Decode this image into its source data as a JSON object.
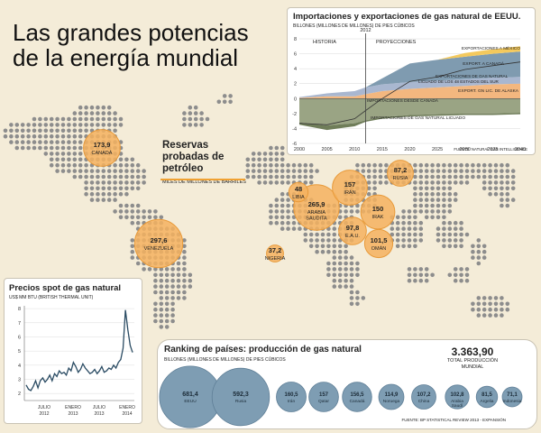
{
  "main_title": {
    "line1": "Las grandes potencias",
    "line2": "de la energía mundial"
  },
  "colors": {
    "background": "#f4ecd8",
    "map_dot": "#8d8d8d",
    "reserve_bubble": "#f4b25f",
    "reserve_border": "#e89a3a",
    "production_bubble": "#7e9db3",
    "production_border": "#5f7f97",
    "accent_line": "#f0a132"
  },
  "reserves": {
    "title": "Reservas probadas de petróleo",
    "unit": "MILES DE MILLONES DE BARRILES",
    "items": [
      {
        "value": "173,9",
        "name": "CANADÁ",
        "v": 173.9
      },
      {
        "value": "297,6",
        "name": "VENEZUELA",
        "v": 297.6
      },
      {
        "value": "37,2",
        "name": "NIGERIA",
        "v": 37.2
      },
      {
        "value": "48",
        "name": "LIBIA",
        "v": 48
      },
      {
        "value": "265,9",
        "name": "ARABIA SAUDITA",
        "v": 265.9
      },
      {
        "value": "157",
        "name": "IRÁN",
        "v": 157
      },
      {
        "value": "150",
        "name": "IRAK",
        "v": 150
      },
      {
        "value": "97,8",
        "name": "E.A.U.",
        "v": 97.8
      },
      {
        "value": "101,5",
        "name": "OMÁN",
        "v": 101.5
      },
      {
        "value": "87,2",
        "name": "RUSIA",
        "v": 87.2
      }
    ]
  },
  "chart_data": [
    {
      "type": "area",
      "title": "Importaciones y exportaciones de gas natural de EEUU.",
      "ylabel": "BILLONES (MILLONES DE MILLONES) DE PIES CÚBICOS",
      "source": "FUENTE: NATURAL GAS INTELLIGENCE",
      "x_ticks": [
        "2000",
        "2005",
        "2010",
        "2015",
        "2020",
        "2025",
        "2030",
        "2035",
        "2040"
      ],
      "y_ticks": [
        "8",
        "6",
        "4",
        "2",
        "0",
        "-2",
        "-4",
        "-6"
      ],
      "xlim": [
        2000,
        2040
      ],
      "ylim": [
        -6,
        8
      ],
      "divider_year": 2012,
      "divider_label": "2012",
      "period_labels": {
        "history": "HISTORIA",
        "projections": "PROYECCIONES"
      },
      "x": [
        2000,
        2005,
        2010,
        2012,
        2015,
        2020,
        2025,
        2030,
        2035,
        2040
      ],
      "series": [
        {
          "name": "EXPORTACIONES A MÉXICO",
          "color": "#f3b77f",
          "values": [
            0.1,
            0.3,
            0.3,
            0.6,
            1.0,
            1.3,
            1.5,
            1.7,
            1.9,
            2.0
          ]
        },
        {
          "name": "EXPORT. A CANADÁ",
          "color": "#a9b7d0",
          "values": [
            0.1,
            0.4,
            0.7,
            0.9,
            0.9,
            0.9,
            0.9,
            0.9,
            0.9,
            0.9
          ]
        },
        {
          "name": "EXPORTACIONES DE GAS NATURAL LICUADO DE LOS 48 ESTADOS DEL SUR",
          "color": "#7f9bb0",
          "values": [
            0,
            0,
            0,
            0,
            0.8,
            2.5,
            2.8,
            3.0,
            3.2,
            3.4
          ]
        },
        {
          "name": "EXPORT. GN LIC. DE ALASKA",
          "color": "#f4c95d",
          "values": [
            0,
            0,
            0,
            0,
            0,
            0,
            0,
            0.5,
            0.6,
            0.7
          ]
        },
        {
          "name": "IMPORTACIONES DESDE CANADÁ",
          "color": "#9aa484",
          "values": [
            -3.2,
            -3.6,
            -3.3,
            -2.9,
            -2.5,
            -2.2,
            -2.1,
            -2.0,
            -2.0,
            -1.9
          ]
        },
        {
          "name": "IMPORTACIONES DE GAS NATURAL LICUADO",
          "color": "#6f7d59",
          "values": [
            -0.3,
            -0.6,
            -0.4,
            -0.2,
            -0.2,
            -0.2,
            -0.2,
            -0.2,
            -0.2,
            -0.2
          ]
        }
      ]
    },
    {
      "type": "line",
      "title": "Precios spot de gas natural",
      "ylabel": "US$ MM BTU (BRITISH THERMAL UNIT)",
      "y_ticks": [
        "8",
        "7",
        "6",
        "5",
        "4",
        "3",
        "2"
      ],
      "ylim": [
        1.5,
        8.2
      ],
      "x_ticks": [
        {
          "label": "JULIO",
          "year": "2012"
        },
        {
          "label": "ENERO",
          "year": "2013"
        },
        {
          "label": "JULIO",
          "year": "2013"
        },
        {
          "label": "ENERO",
          "year": "2014"
        }
      ],
      "values": [
        2.6,
        2.3,
        2.2,
        2.5,
        2.9,
        2.4,
        2.9,
        3.1,
        2.8,
        3.0,
        3.3,
        2.9,
        3.4,
        3.2,
        3.6,
        3.4,
        3.5,
        3.3,
        3.8,
        3.6,
        4.2,
        3.9,
        3.5,
        3.7,
        4.1,
        3.8,
        3.6,
        3.4,
        3.5,
        3.7,
        3.4,
        3.6,
        3.9,
        3.5,
        3.6,
        3.8,
        3.7,
        4.0,
        3.8,
        4.2,
        4.4,
        5.2,
        7.9,
        6.5,
        5.4,
        4.9
      ]
    },
    {
      "type": "bubble",
      "title": "Ranking de países: producción de gas natural",
      "unit": "BILLONES (MILLONES DE MILLONES) DE PIES CÚBICOS",
      "total_value": "3.363,90",
      "total_label": "TOTAL PRODUCCIÓN MUNDIAL",
      "source": "FUENTE: BP STATISTICAL REVIEW 2013 - EXPANSIÓN",
      "items": [
        {
          "value": "681,4",
          "name": "EEUU",
          "v": 681.4
        },
        {
          "value": "592,3",
          "name": "Rusia",
          "v": 592.3
        },
        {
          "value": "160,5",
          "name": "Irán",
          "v": 160.5
        },
        {
          "value": "157",
          "name": "Qatar",
          "v": 157
        },
        {
          "value": "156,5",
          "name": "Canadá",
          "v": 156.5
        },
        {
          "value": "114,9",
          "name": "Noruega",
          "v": 114.9
        },
        {
          "value": "107,2",
          "name": "China",
          "v": 107.2
        },
        {
          "value": "102,8",
          "name": "Arabia Saudí",
          "v": 102.8
        },
        {
          "value": "81,5",
          "name": "Argelia",
          "v": 81.5
        },
        {
          "value": "71,1",
          "name": "Indonesia",
          "v": 71.1
        }
      ]
    }
  ]
}
